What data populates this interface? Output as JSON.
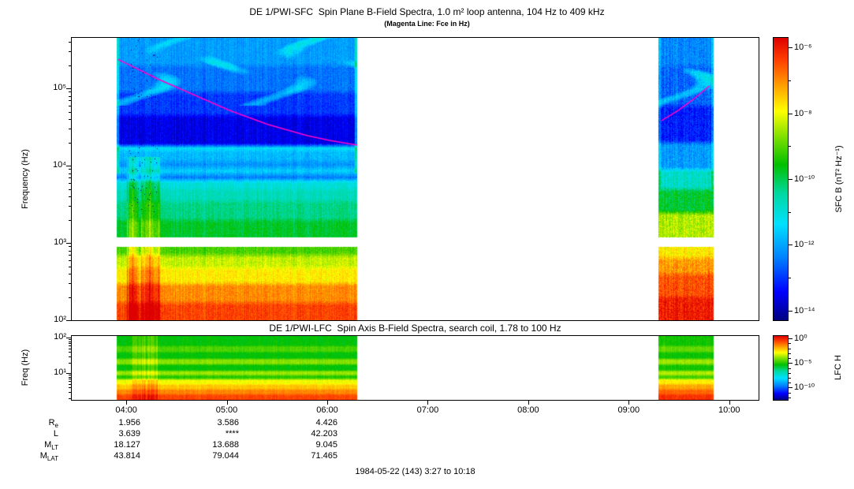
{
  "footer": {
    "text": "1984-05-22 (143) 3:27 to 10:18"
  },
  "xaxis": {
    "tick_labels": [
      "04:00",
      "05:00",
      "06:00",
      "07:00",
      "08:00",
      "09:00",
      "10:00"
    ],
    "tick_hours": [
      4,
      5,
      6,
      7,
      8,
      9,
      10
    ],
    "time_range_hours": [
      3.45,
      10.3
    ]
  },
  "ephemeris": {
    "rows": [
      {
        "label_main": "R",
        "label_sub": "e",
        "values": [
          "1.956",
          "3.586",
          "4.426"
        ]
      },
      {
        "label_main": "L",
        "label_sub": "",
        "values": [
          "3.639",
          "****",
          "42.203"
        ]
      },
      {
        "label_main": "M",
        "label_sub": "LT",
        "values": [
          "18.127",
          "13.688",
          "9.045"
        ]
      },
      {
        "label_main": "M",
        "label_sub": "LAT",
        "values": [
          "43.814",
          "79.044",
          "71.465"
        ]
      }
    ]
  },
  "colormap": {
    "stops": [
      [
        0.0,
        "#000080"
      ],
      [
        0.1,
        "#0000ff"
      ],
      [
        0.22,
        "#0080ff"
      ],
      [
        0.34,
        "#00e0ff"
      ],
      [
        0.45,
        "#00d8a0"
      ],
      [
        0.55,
        "#00c000"
      ],
      [
        0.65,
        "#80e000"
      ],
      [
        0.74,
        "#ffff00"
      ],
      [
        0.83,
        "#ffa000"
      ],
      [
        0.92,
        "#ff4000"
      ],
      [
        1.0,
        "#dd0000"
      ]
    ]
  },
  "chart_data": [
    {
      "id": "sfc",
      "type": "heatmap",
      "title": "DE 1/PWI-SFC  Spin Plane B-Field Spectra, 1.0 m² loop antenna, 104 Hz to 409 kHz",
      "subtitle": "(Magenta Line: Fce in Hz)",
      "ylabel": "Frequency (Hz)",
      "yscale": "log",
      "freq_range_hz": [
        100,
        450000
      ],
      "ytick_labels": [
        "10⁵",
        "10⁴",
        "10³",
        "10²"
      ],
      "ytick_exponents": [
        5,
        4,
        3,
        2
      ],
      "colorbar": {
        "label": "SFC B (nT² Hz⁻¹)",
        "tick_labels": [
          "10⁻⁶",
          "10⁻⁸",
          "10⁻¹⁰",
          "10⁻¹²",
          "10⁻¹⁴"
        ],
        "tick_exponents": [
          -6,
          -8,
          -10,
          -12,
          -14
        ],
        "value_range_log10": [
          -14.3,
          -5.7
        ]
      },
      "segments": [
        {
          "t_start": 3.9,
          "t_end": 6.3,
          "gap_hz": [
            900,
            1200
          ],
          "noise_col": 0.4,
          "noise_pix": 0.55,
          "bands": [
            [
              100,
              170,
              -6.4
            ],
            [
              170,
              300,
              -7.0
            ],
            [
              300,
              480,
              -7.8
            ],
            [
              480,
              700,
              -8.3
            ],
            [
              700,
              900,
              -9.1
            ],
            [
              1200,
              2000,
              -9.8
            ],
            [
              2000,
              3500,
              -10.3
            ],
            [
              3500,
              5000,
              -10.7
            ],
            [
              5000,
              6500,
              -11.0
            ],
            [
              6500,
              7800,
              -12.4
            ],
            [
              7800,
              9500,
              -11.6
            ],
            [
              9500,
              11500,
              -12.2
            ],
            [
              11500,
              16000,
              -11.8
            ],
            [
              16000,
              18200,
              -11.3
            ],
            [
              18200,
              45000,
              -13.6
            ],
            [
              45000,
              90000,
              -13.0
            ],
            [
              90000,
              200000,
              -12.5
            ],
            [
              200000,
              450000,
              -12.1
            ]
          ],
          "features": {
            "burst_t": [
              4.0,
              4.33
            ],
            "burst_fmax": 13000,
            "burst_boost": 1.2,
            "speckle_t": [
              4.02,
              4.3
            ],
            "speckle_p": 0.015,
            "patches": {
              "fmin": 60000,
              "boost": 1.0
            },
            "edge_boost": 1.2,
            "edge_fmin": 8000
          }
        },
        {
          "t_start": 9.3,
          "t_end": 9.85,
          "gap_hz": [
            900,
            1200
          ],
          "noise_col": 0.5,
          "noise_pix": 0.8,
          "bands": [
            [
              100,
              200,
              -6.0
            ],
            [
              200,
              400,
              -6.5
            ],
            [
              400,
              650,
              -7.1
            ],
            [
              650,
              900,
              -7.8
            ],
            [
              1200,
              2500,
              -8.4
            ],
            [
              2500,
              5000,
              -9.8
            ],
            [
              5000,
              9000,
              -10.8
            ],
            [
              9000,
              20000,
              -12.1
            ],
            [
              20000,
              60000,
              -13.2
            ],
            [
              60000,
              200000,
              -12.6
            ],
            [
              200000,
              450000,
              -12.3
            ]
          ],
          "features": {
            "patches": {
              "fmin": 50000,
              "boost": 1.3
            },
            "edge_boost": 0.7,
            "edge_fmin": 5000
          }
        }
      ],
      "fce_line": {
        "color": "#ff00cc",
        "label": "Fce",
        "segments": [
          [
            [
              3.91,
              238000
            ],
            [
              4.31,
              132000
            ],
            [
              4.7,
              79000
            ],
            [
              5.02,
              52000
            ],
            [
              5.41,
              34000
            ],
            [
              5.8,
              24400
            ],
            [
              6.02,
              21200
            ],
            [
              6.3,
              18400
            ]
          ],
          [
            [
              9.33,
              38000
            ],
            [
              9.5,
              52000
            ],
            [
              9.65,
              72000
            ],
            [
              9.81,
              108000
            ]
          ]
        ]
      }
    },
    {
      "id": "lfc",
      "type": "heatmap",
      "title": "DE 1/PWI-LFC  Spin Axis B-Field Spectra, search coil, 1.78 to 100 Hz",
      "ylabel": "Freq (Hz)",
      "yscale": "log",
      "freq_range_hz": [
        1.78,
        112
      ],
      "ytick_labels": [
        "10²",
        "10¹"
      ],
      "ytick_exponents": [
        2,
        1
      ],
      "colorbar": {
        "label": "LFC H",
        "tick_labels": [
          "10⁰",
          "10⁻⁵",
          "10⁻¹⁰"
        ],
        "tick_exponents": [
          0,
          -5,
          -10
        ],
        "value_range_log10": [
          -12.5,
          0.5
        ]
      },
      "segments": [
        {
          "t_start": 3.9,
          "t_end": 6.3,
          "noise_col": 0.35,
          "noise_pix": 0.45,
          "bands": [
            [
              1.78,
              2.6,
              -0.6
            ],
            [
              2.6,
              3.6,
              -1.4
            ],
            [
              3.6,
              5.0,
              -2.2
            ],
            [
              5.0,
              7.0,
              -3.0
            ],
            [
              7.0,
              9.0,
              -5.0
            ],
            [
              9.0,
              12.0,
              -3.8
            ],
            [
              12.0,
              18.0,
              -5.4
            ],
            [
              18.0,
              26.0,
              -4.0
            ],
            [
              26.0,
              40.0,
              -5.4
            ],
            [
              40.0,
              60.0,
              -4.6
            ],
            [
              60.0,
              112.0,
              -5.4
            ]
          ],
          "features": {
            "burst_t": [
              4.05,
              4.3
            ],
            "burst_fmax": 112,
            "burst_boost": 0.9
          }
        },
        {
          "t_start": 9.3,
          "t_end": 9.85,
          "noise_col": 0.35,
          "noise_pix": 0.5,
          "bands": [
            [
              1.78,
              2.6,
              -0.3
            ],
            [
              2.6,
              3.6,
              -1.0
            ],
            [
              3.6,
              5.0,
              -1.8
            ],
            [
              5.0,
              7.0,
              -2.7
            ],
            [
              7.0,
              9.0,
              -4.7
            ],
            [
              9.0,
              12.0,
              -3.6
            ],
            [
              12.0,
              18.0,
              -5.2
            ],
            [
              18.0,
              26.0,
              -3.8
            ],
            [
              26.0,
              40.0,
              -5.3
            ],
            [
              40.0,
              60.0,
              -4.4
            ],
            [
              60.0,
              112.0,
              -5.2
            ]
          ]
        }
      ]
    }
  ]
}
